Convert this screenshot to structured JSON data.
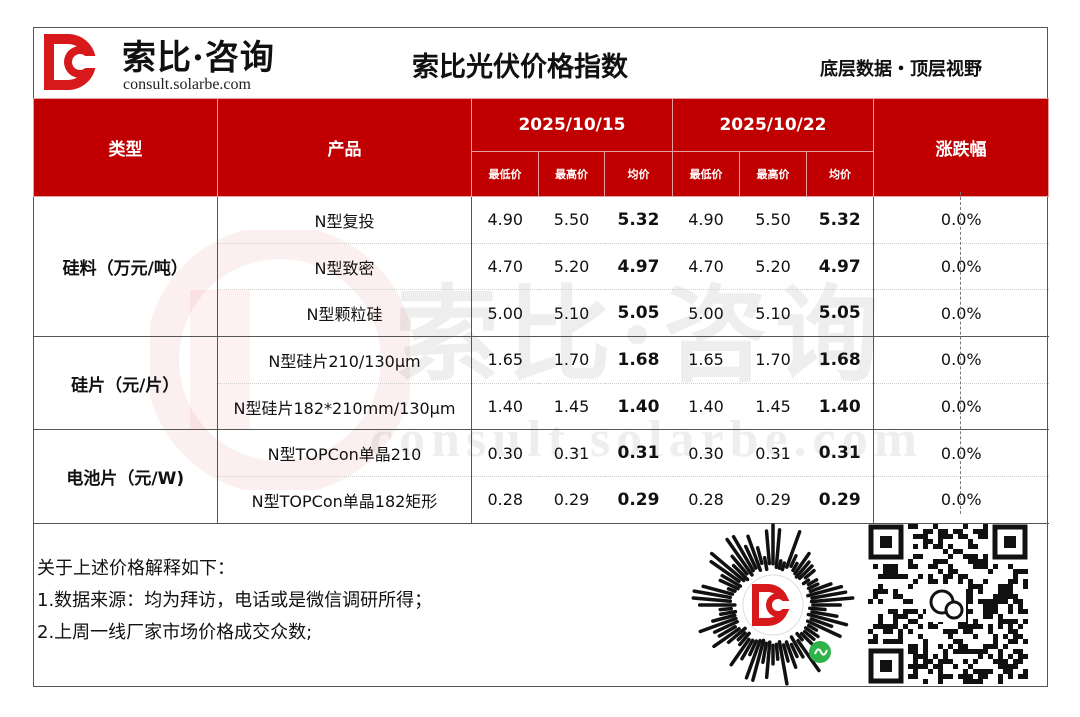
{
  "header": {
    "brand_name": "索比·咨询",
    "brand_url": "consult.solarbe.com",
    "title": "索比光伏价格指数",
    "slogan": "底层数据・顶层视野"
  },
  "watermark": {
    "text": "索比·咨询",
    "url": "consult.solarbe.com"
  },
  "table": {
    "col_type": "类型",
    "col_product": "产品",
    "col_change": "涨跌幅",
    "dates": [
      "2025/10/15",
      "2025/10/22"
    ],
    "sub_cols": [
      "最低价",
      "最高价",
      "均价"
    ],
    "groups": [
      {
        "category": "硅料（万元/吨）",
        "rows": [
          {
            "product": "N型复投",
            "d1": [
              "4.90",
              "5.50",
              "5.32"
            ],
            "d2": [
              "4.90",
              "5.50",
              "5.32"
            ],
            "change": "0.0%"
          },
          {
            "product": "N型致密",
            "d1": [
              "4.70",
              "5.20",
              "4.97"
            ],
            "d2": [
              "4.70",
              "5.20",
              "4.97"
            ],
            "change": "0.0%"
          },
          {
            "product": "N型颗粒硅",
            "d1": [
              "5.00",
              "5.10",
              "5.05"
            ],
            "d2": [
              "5.00",
              "5.10",
              "5.05"
            ],
            "change": "0.0%"
          }
        ]
      },
      {
        "category": "硅片（元/片）",
        "rows": [
          {
            "product": "N型硅片210/130μm",
            "d1": [
              "1.65",
              "1.70",
              "1.68"
            ],
            "d2": [
              "1.65",
              "1.70",
              "1.68"
            ],
            "change": "0.0%"
          },
          {
            "product": "N型硅片182*210mm/130μm",
            "d1": [
              "1.40",
              "1.45",
              "1.40"
            ],
            "d2": [
              "1.40",
              "1.45",
              "1.40"
            ],
            "change": "0.0%"
          }
        ]
      },
      {
        "category": "电池片（元/W)",
        "rows": [
          {
            "product": "N型TOPCon单晶210",
            "d1": [
              "0.30",
              "0.31",
              "0.31"
            ],
            "d2": [
              "0.30",
              "0.31",
              "0.31"
            ],
            "change": "0.0%"
          },
          {
            "product": "N型TOPCon单晶182矩形",
            "d1": [
              "0.28",
              "0.29",
              "0.29"
            ],
            "d2": [
              "0.28",
              "0.29",
              "0.29"
            ],
            "change": "0.0%"
          }
        ]
      }
    ]
  },
  "notes": {
    "heading": "关于上述价格解释如下：",
    "items": [
      "1.数据来源：均为拜访，电话或是微信调研所得；",
      "2.上周一线厂家市场价格成交众数;"
    ]
  },
  "colors": {
    "header_red": "#c00000",
    "logo_red": "#d7191c",
    "wechat_green": "#2eb34a"
  },
  "icons": [
    "solarbe-logo-icon",
    "mini-program-qr-icon",
    "wechat-qr-icon"
  ]
}
